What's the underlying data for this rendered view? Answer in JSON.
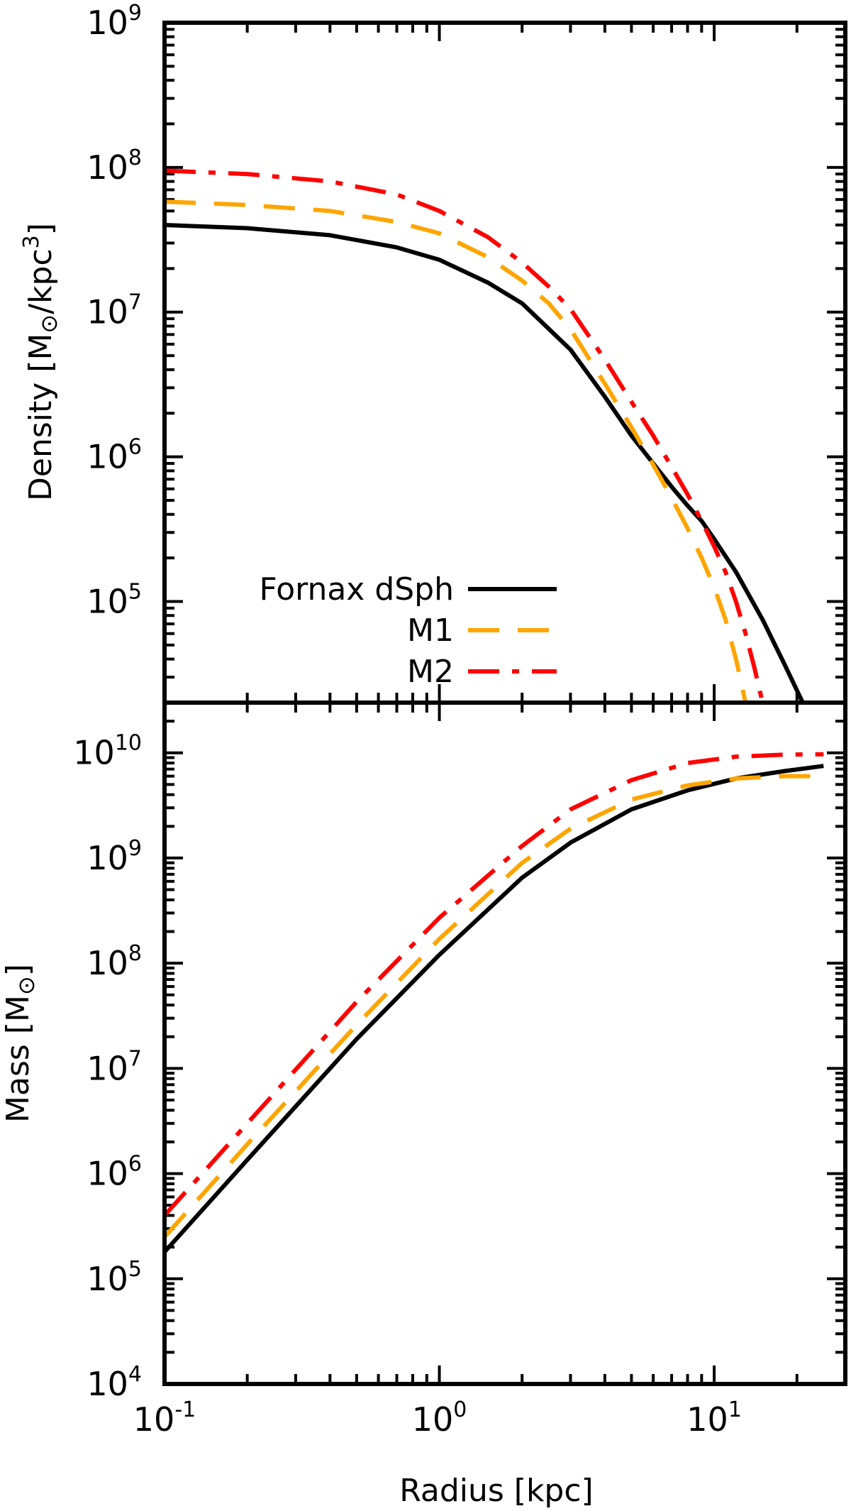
{
  "chart_data": [
    {
      "type": "line",
      "panel": "top",
      "ylabel": "Density [M⊙/kpc3]",
      "ylabel_parts": [
        "Density [M",
        "⊙",
        "/kpc",
        "3",
        "]"
      ],
      "xscale": "log",
      "yscale": "log",
      "xlim": [
        0.1,
        30
      ],
      "ylim": [
        20000,
        1000000000
      ],
      "x_tick_labels": [],
      "y_ticks": [
        {
          "base": "10",
          "exp": "9",
          "value": 1000000000
        },
        {
          "base": "10",
          "exp": "8",
          "value": 100000000
        },
        {
          "base": "10",
          "exp": "7",
          "value": 10000000
        },
        {
          "base": "10",
          "exp": "6",
          "value": 1000000
        },
        {
          "base": "10",
          "exp": "5",
          "value": 100000
        }
      ],
      "grid": false,
      "legend_position": "bottom-left",
      "series": [
        {
          "name": "Fornax dSph",
          "color": "#000000",
          "style": "solid",
          "x": [
            0.1,
            0.2,
            0.4,
            0.7,
            1.0,
            1.5,
            2.0,
            3.0,
            4.0,
            5.0,
            6.0,
            7.0,
            8.0,
            9.0,
            10.0,
            12.0,
            15.0,
            18.0,
            21.0
          ],
          "y": [
            40000000,
            38000000,
            34000000,
            28000000,
            23000000,
            16000000,
            11500000,
            5500000,
            2600000,
            1400000,
            900000,
            620000,
            460000,
            360000,
            270000,
            160000,
            75000,
            37000,
            20000
          ]
        },
        {
          "name": "M1",
          "color": "#ffa500",
          "style": "dashed",
          "x": [
            0.1,
            0.2,
            0.4,
            0.7,
            1.0,
            1.5,
            2.0,
            2.5,
            3.0,
            4.0,
            5.0,
            6.0,
            7.0,
            8.0,
            9.0,
            10.0,
            11.0,
            12.0,
            13.0
          ],
          "y": [
            58000000,
            55000000,
            50000000,
            42000000,
            35000000,
            24000000,
            16500000,
            11500000,
            7600000,
            3200000,
            1600000,
            880000,
            520000,
            320000,
            200000,
            125000,
            75000,
            40000,
            20000
          ]
        },
        {
          "name": "M2",
          "color": "#ff0000",
          "style": "dashdot",
          "x": [
            0.1,
            0.2,
            0.4,
            0.7,
            1.0,
            1.5,
            2.0,
            2.5,
            3.0,
            4.0,
            5.0,
            6.0,
            7.0,
            8.0,
            9.0,
            10.0,
            11.0,
            12.0,
            13.0,
            14.0,
            15.0
          ],
          "y": [
            95000000,
            90000000,
            80000000,
            65000000,
            50000000,
            33000000,
            22000000,
            15000000,
            10500000,
            4700000,
            2400000,
            1400000,
            850000,
            550000,
            360000,
            240000,
            160000,
            100000,
            60000,
            35000,
            20000
          ]
        }
      ]
    },
    {
      "type": "line",
      "panel": "bottom",
      "xlabel": "Radius [kpc]",
      "ylabel": "Mass [M⊙]",
      "ylabel_parts": [
        "Mass [M",
        "⊙",
        "]"
      ],
      "xscale": "log",
      "yscale": "log",
      "xlim": [
        0.1,
        30
      ],
      "ylim": [
        10000,
        30000000000
      ],
      "x_ticks": [
        {
          "base": "10",
          "exp": "-1",
          "value": 0.1
        },
        {
          "base": "10",
          "exp": "0",
          "value": 1
        },
        {
          "base": "10",
          "exp": "1",
          "value": 10
        }
      ],
      "y_ticks": [
        {
          "base": "10",
          "exp": "10",
          "value": 10000000000
        },
        {
          "base": "10",
          "exp": "9",
          "value": 1000000000
        },
        {
          "base": "10",
          "exp": "8",
          "value": 100000000
        },
        {
          "base": "10",
          "exp": "7",
          "value": 10000000
        },
        {
          "base": "10",
          "exp": "6",
          "value": 1000000
        },
        {
          "base": "10",
          "exp": "5",
          "value": 100000
        },
        {
          "base": "10",
          "exp": "4",
          "value": 10000
        }
      ],
      "grid": false,
      "series": [
        {
          "name": "Fornax dSph",
          "color": "#000000",
          "style": "solid",
          "x": [
            0.1,
            0.2,
            0.5,
            1.0,
            2.0,
            3.0,
            5.0,
            8.0,
            12.0,
            18.0,
            25.0
          ],
          "y": [
            180000,
            1350000,
            19000000,
            120000000,
            650000000,
            1400000000,
            2900000000,
            4400000000,
            5700000000,
            6700000000,
            7500000000
          ]
        },
        {
          "name": "M1",
          "color": "#ffa500",
          "style": "dashed",
          "x": [
            0.1,
            0.2,
            0.5,
            1.0,
            2.0,
            3.0,
            5.0,
            8.0,
            12.0,
            18.0,
            25.0
          ],
          "y": [
            250000,
            1900000,
            26000000,
            170000000,
            900000000,
            1900000000,
            3600000000,
            4900000000,
            5700000000,
            6000000000,
            6000000000
          ]
        },
        {
          "name": "M2",
          "color": "#ff0000",
          "style": "dashdot",
          "x": [
            0.1,
            0.2,
            0.5,
            1.0,
            2.0,
            3.0,
            5.0,
            8.0,
            12.0,
            18.0,
            25.0
          ],
          "y": [
            400000,
            3000000,
            43000000,
            270000000,
            1300000000,
            2900000000,
            5500000000,
            8000000000,
            9200000000,
            9600000000,
            9700000000
          ]
        }
      ]
    }
  ]
}
